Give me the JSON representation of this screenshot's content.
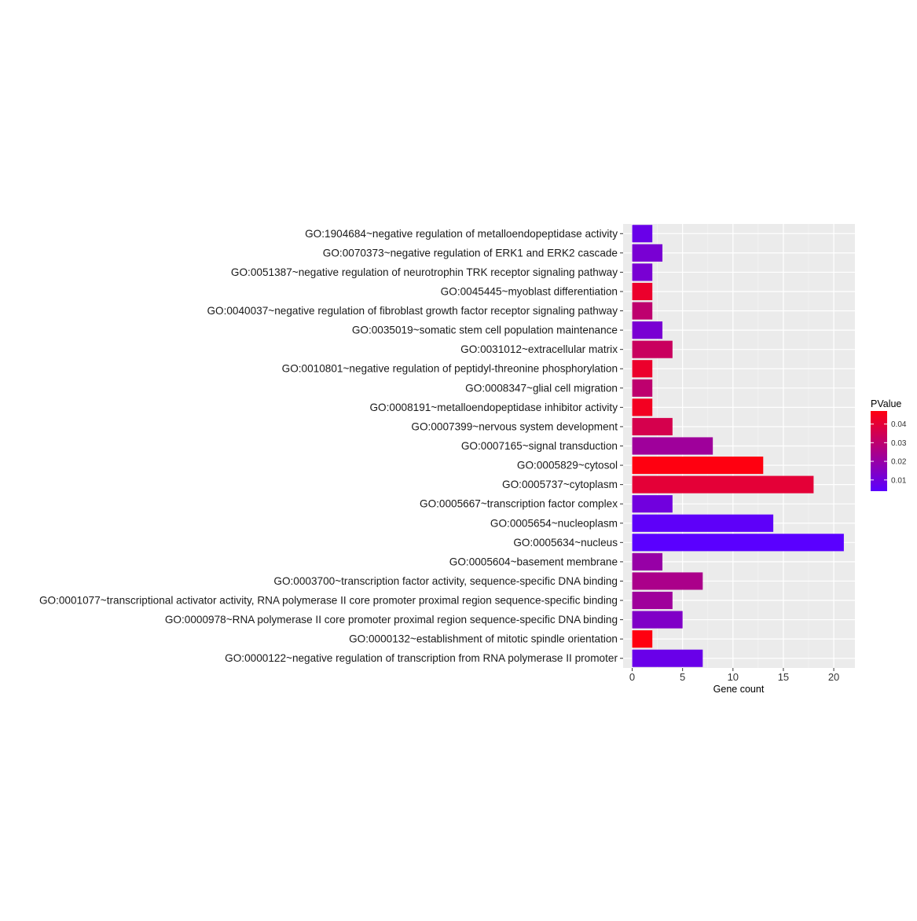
{
  "chart_data": {
    "type": "bar",
    "orientation": "horizontal",
    "title": "",
    "xlabel": "Gene count",
    "ylabel": "",
    "xlim": [
      -0.9,
      22.1
    ],
    "x_ticks": [
      0,
      5,
      10,
      15,
      20
    ],
    "grid": true,
    "legend": {
      "title": "PValue",
      "placement": "right",
      "ticks": [
        0.01,
        0.02,
        0.03,
        0.04
      ],
      "range": [
        0.004,
        0.047
      ],
      "low_color": "#5a00ff",
      "high_color": "#ff0010"
    },
    "categories": [
      "GO:1904684~negative regulation of metalloendopeptidase activity",
      "GO:0070373~negative regulation of ERK1 and ERK2 cascade",
      "GO:0051387~negative regulation of neurotrophin TRK receptor signaling pathway",
      "GO:0045445~myoblast differentiation",
      "GO:0040037~negative regulation of fibroblast growth factor receptor signaling pathway",
      "GO:0035019~somatic stem cell population maintenance",
      "GO:0031012~extracellular matrix",
      "GO:0010801~negative regulation of peptidyl-threonine phosphorylation",
      "GO:0008347~glial cell migration",
      "GO:0008191~metalloendopeptidase inhibitor activity",
      "GO:0007399~nervous system development",
      "GO:0007165~signal transduction",
      "GO:0005829~cytosol",
      "GO:0005737~cytoplasm",
      "GO:0005667~transcription factor complex",
      "GO:0005654~nucleoplasm",
      "GO:0005634~nucleus",
      "GO:0005604~basement membrane",
      "GO:0003700~transcription factor activity, sequence-specific DNA binding",
      "GO:0001077~transcriptional activator activity, RNA polymerase II core promoter proximal region sequence-specific binding",
      "GO:0000978~RNA polymerase II core promoter proximal region sequence-specific DNA binding",
      "GO:0000132~establishment of mitotic spindle orientation",
      "GO:0000122~negative regulation of transcription from RNA polymerase II promoter"
    ],
    "values": [
      2,
      3,
      2,
      2,
      2,
      3,
      4,
      2,
      2,
      2,
      4,
      8,
      13,
      18,
      4,
      14,
      21,
      3,
      7,
      4,
      5,
      2,
      7
    ],
    "pvalues": [
      0.008,
      0.012,
      0.012,
      0.042,
      0.03,
      0.012,
      0.033,
      0.042,
      0.03,
      0.044,
      0.036,
      0.022,
      0.047,
      0.04,
      0.01,
      0.005,
      0.004,
      0.02,
      0.025,
      0.022,
      0.014,
      0.047,
      0.008
    ]
  }
}
